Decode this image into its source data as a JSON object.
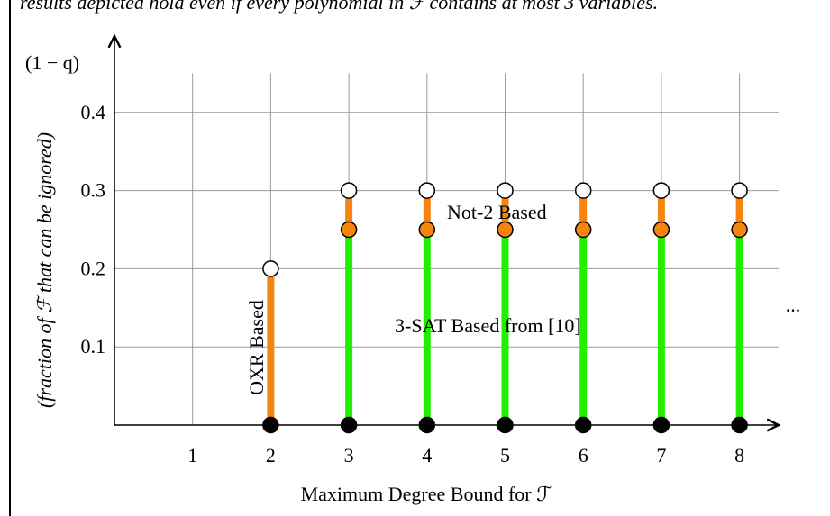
{
  "caption": "results depicted hold even if every polynomial in ℱ contains at most 3 variables.",
  "chart_data": {
    "type": "scatter",
    "title": "",
    "xlabel": "Maximum Degree Bound for ℱ",
    "ylabel_top": "(1 − q)",
    "ylabel": "(fraction of ℱ that can be ignored)",
    "xlim": [
      0,
      8.5
    ],
    "ylim": [
      0,
      0.45
    ],
    "x_ticks": [
      "1",
      "2",
      "3",
      "4",
      "5",
      "6",
      "7",
      "8"
    ],
    "y_ticks": [
      "0.1",
      "0.2",
      "0.3",
      "0.4"
    ],
    "grid": true,
    "colors": {
      "green": "#22ee00",
      "orange": "#f7840f",
      "black": "#000000"
    },
    "x": [
      2,
      3,
      4,
      5,
      6,
      7,
      8
    ],
    "segments": [
      {
        "x": 2,
        "color": "orange",
        "from": 0,
        "to": 0.2,
        "open_top": 0.2
      },
      {
        "x": 3,
        "green_to": 0.25,
        "orange_to": 0.3
      },
      {
        "x": 4,
        "green_to": 0.25,
        "orange_to": 0.3
      },
      {
        "x": 5,
        "green_to": 0.25,
        "orange_to": 0.3
      },
      {
        "x": 6,
        "green_to": 0.25,
        "orange_to": 0.3
      },
      {
        "x": 7,
        "green_to": 0.25,
        "orange_to": 0.3
      },
      {
        "x": 8,
        "green_to": 0.25,
        "orange_to": 0.3
      }
    ],
    "annotations": {
      "oxr": "OXR Based",
      "not2": "Not-2 Based",
      "sat": "3-SAT Based from [10]",
      "ellipsis": "..."
    }
  }
}
